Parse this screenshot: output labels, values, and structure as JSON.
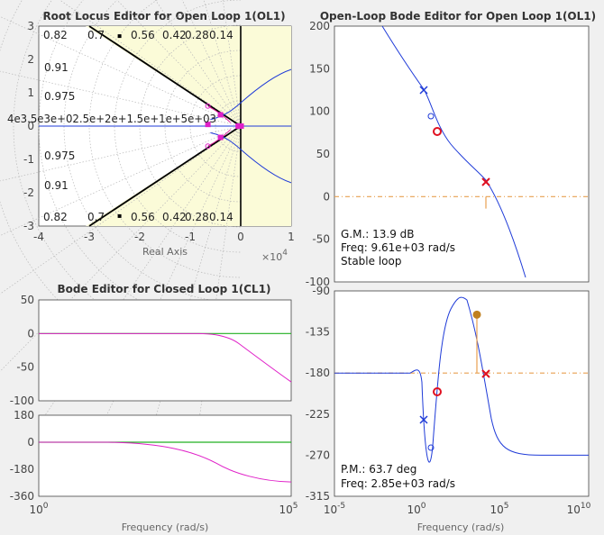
{
  "chart_data": [
    {
      "type": "line",
      "title": "Root Locus Editor for Open Loop 1(OL1)",
      "xlabel": "Real Axis",
      "x_exponent_label": "×10",
      "x_exponent_value": "4",
      "xlim": [
        -40000,
        10000
      ],
      "ylim": [
        -3,
        3
      ],
      "xticks": [
        {
          "v": -40000,
          "label": "-4"
        },
        {
          "v": -30000,
          "label": "-3"
        },
        {
          "v": -20000,
          "label": "-2"
        },
        {
          "v": -10000,
          "label": "-1"
        },
        {
          "v": 0,
          "label": "0"
        },
        {
          "v": 10000,
          "label": "1"
        }
      ],
      "yticks": [
        {
          "v": 3,
          "label": "3"
        },
        {
          "v": 2,
          "label": "2"
        },
        {
          "v": 1,
          "label": "1"
        },
        {
          "v": 0,
          "label": "0"
        },
        {
          "v": -1,
          "label": "-1"
        },
        {
          "v": -2,
          "label": "-2"
        },
        {
          "v": -3,
          "label": "-3"
        }
      ],
      "damping_top": [
        "0.82",
        "0.7",
        "0.56",
        "0.42",
        "0.28",
        "0.14"
      ],
      "damping_left": [
        "0.91",
        "0.975"
      ],
      "damping_bottom": [
        "0.82",
        "0.7",
        "0.56",
        "0.42",
        "0.28",
        "0.14"
      ],
      "damping_left_lower": [
        "0.975",
        "0.91"
      ],
      "freq_labels": "4e3.5e3e+02.5e+2e+1.5e+1e+5e+03",
      "closed_loop_poles": [
        [
          -9000,
          0.35
        ],
        [
          -9000,
          -0.35
        ],
        [
          -6500,
          0.05
        ],
        [
          -6500,
          -0.05
        ],
        [
          -1000,
          0
        ],
        [
          100,
          0
        ]
      ]
    },
    {
      "type": "line",
      "title": "Open-Loop Bode Editor for Open Loop 1(OL1)",
      "ylim": [
        -100,
        200
      ],
      "yticks": [
        "200",
        "150",
        "100",
        "50",
        "0",
        "-50",
        "-100"
      ],
      "annotations": [
        "G.M.: 13.9 dB",
        "Freq: 9.61e+03 rad/s",
        "Stable loop"
      ]
    },
    {
      "type": "line",
      "ylim": [
        -315,
        -90
      ],
      "yticks": [
        "-90",
        "-135",
        "-180",
        "-225",
        "-270",
        "-315"
      ],
      "xlabel": "Frequency (rad/s)",
      "xticks": [
        {
          "base": "10",
          "exp": "-5"
        },
        {
          "base": "10",
          "exp": "0"
        },
        {
          "base": "10",
          "exp": "5"
        },
        {
          "base": "10",
          "exp": "10"
        }
      ],
      "annotations": [
        "P.M.: 63.7 deg",
        "Freq: 2.85e+03 rad/s"
      ]
    },
    {
      "type": "line",
      "title": "Bode Editor for Closed Loop 1(CL1)",
      "ylim": [
        -100,
        50
      ],
      "yticks": [
        "50",
        "0",
        "-50",
        "-100"
      ]
    },
    {
      "type": "line",
      "ylim": [
        -360,
        180
      ],
      "yticks": [
        "180",
        "0",
        "-180",
        "-360"
      ],
      "xlabel": "Frequency (rad/s)",
      "xticks": [
        {
          "base": "10",
          "exp": "0"
        },
        {
          "base": "10",
          "exp": "5"
        }
      ]
    }
  ]
}
